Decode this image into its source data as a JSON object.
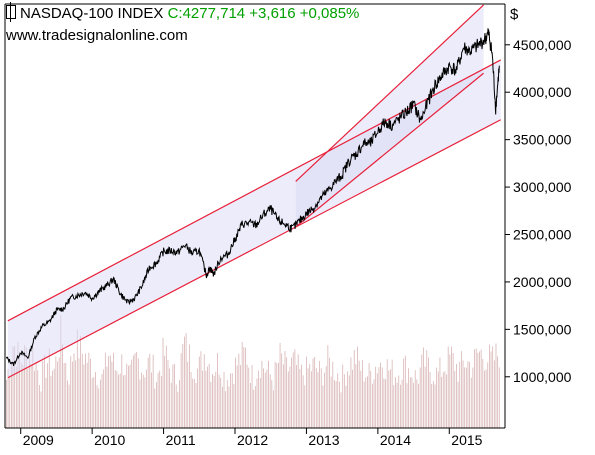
{
  "header": {
    "title": "NASDAQ-100 INDEX",
    "quote": "C:4277,714 +3,616 +0,085%",
    "website": "www.tradesignalonline.com",
    "currency": "$"
  },
  "colors": {
    "price": "#000000",
    "channel_line": "#e8203a",
    "channel_fill": "#dcdcf5",
    "volume": "#d8b4b4",
    "frame": "#000000"
  },
  "chart_data": {
    "type": "line",
    "title": "NASDAQ-100 INDEX",
    "xlabel": "",
    "ylabel": "$",
    "x_tick_labels": [
      "2009",
      "2010",
      "2011",
      "2012",
      "2013",
      "2014",
      "2015"
    ],
    "y_tick_labels": [
      "1000,000",
      "1500,000",
      "2000,000",
      "2500,000",
      "3000,000",
      "3500,000",
      "4000,000",
      "4500,000"
    ],
    "y_ticks": [
      1000,
      1500,
      2000,
      2500,
      3000,
      3500,
      4000,
      4500
    ],
    "x_ticks": [
      2009,
      2010,
      2011,
      2012,
      2013,
      2014,
      2015
    ],
    "xlim": [
      2008.78,
      2015.78
    ],
    "ylim": [
      460,
      4930
    ],
    "grid": false,
    "series": [
      {
        "x": [
          2008.8,
          2008.9,
          2009.0,
          2009.1,
          2009.2,
          2009.3,
          2009.4,
          2009.5,
          2009.6,
          2009.7,
          2009.8,
          2009.9,
          2010.0,
          2010.1,
          2010.2,
          2010.3,
          2010.4,
          2010.5,
          2010.6,
          2010.7,
          2010.8,
          2010.9,
          2011.0,
          2011.1,
          2011.2,
          2011.3,
          2011.4,
          2011.5,
          2011.6,
          2011.65,
          2011.7,
          2011.8,
          2011.9,
          2012.0,
          2012.1,
          2012.2,
          2012.3,
          2012.4,
          2012.5,
          2012.6,
          2012.7,
          2012.8,
          2012.9,
          2013.0,
          2013.1,
          2013.2,
          2013.3,
          2013.4,
          2013.5,
          2013.6,
          2013.7,
          2013.8,
          2013.9,
          2014.0,
          2014.1,
          2014.2,
          2014.3,
          2014.4,
          2014.5,
          2014.6,
          2014.7,
          2014.8,
          2014.9,
          2015.0,
          2015.1,
          2015.2,
          2015.3,
          2015.4,
          2015.5,
          2015.55,
          2015.6,
          2015.65,
          2015.7
        ],
        "values": [
          1200,
          1130,
          1260,
          1200,
          1420,
          1530,
          1580,
          1700,
          1720,
          1830,
          1860,
          1890,
          1830,
          1900,
          1960,
          2030,
          1870,
          1780,
          1830,
          1960,
          2150,
          2200,
          2320,
          2330,
          2310,
          2390,
          2300,
          2330,
          2070,
          2150,
          2080,
          2250,
          2290,
          2450,
          2610,
          2620,
          2600,
          2710,
          2770,
          2650,
          2610,
          2560,
          2640,
          2720,
          2780,
          2880,
          2960,
          3050,
          3130,
          3280,
          3350,
          3460,
          3460,
          3590,
          3690,
          3650,
          3720,
          3790,
          3870,
          3700,
          3900,
          4070,
          4180,
          4270,
          4230,
          4470,
          4430,
          4490,
          4560,
          4620,
          4410,
          3830,
          4280
        ]
      }
    ],
    "volume": {
      "values": [
        1000,
        1400,
        1200,
        1300,
        1250,
        1000,
        1200,
        1100,
        1500,
        1000,
        1400,
        1300,
        1200,
        1100,
        1000,
        1300,
        1100,
        1200,
        1000,
        1250,
        1100,
        1200,
        1000,
        1300,
        1100,
        1000,
        1400,
        1200,
        1100,
        1300,
        1100,
        1200,
        1000,
        1100,
        1200,
        1300,
        1000,
        1200,
        1100,
        1000,
        1250,
        1100,
        1200,
        1050,
        1100,
        1150,
        1050,
        1200,
        1100,
        1000,
        1150,
        1250,
        1100,
        1050,
        1150,
        1200,
        1100,
        1050,
        1150,
        1100,
        1000,
        1200,
        1100,
        1050,
        1150,
        1250,
        1100,
        1200,
        1150,
        1300,
        1250,
        1200,
        1300
      ]
    },
    "channels": [
      {
        "x": [
          2008.82,
          2015.72
        ],
        "upper": [
          1590,
          4340
        ],
        "lower": [
          990,
          3710
        ]
      },
      {
        "x": [
          2012.85,
          2015.48
        ],
        "upper": [
          3060,
          4920
        ],
        "lower": [
          2580,
          4200
        ]
      }
    ]
  }
}
